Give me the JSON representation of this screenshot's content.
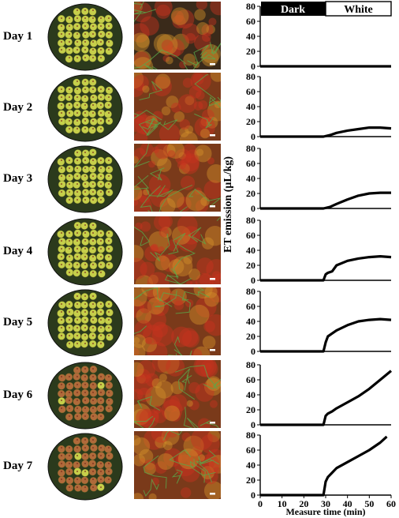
{
  "rows": [
    {
      "day": "Day 1",
      "state": "green"
    },
    {
      "day": "Day 2",
      "state": "green"
    },
    {
      "day": "Day 3",
      "state": "green"
    },
    {
      "day": "Day 4",
      "state": "green"
    },
    {
      "day": "Day 5",
      "state": "green"
    },
    {
      "day": "Day 6",
      "state": "brown"
    },
    {
      "day": "Day 7",
      "state": "brown"
    }
  ],
  "colors": {
    "fruit_green": "#c6cf4a",
    "fruit_brown": "#b06a3a",
    "micro_red": "#c8321e",
    "micro_green": "#5aa84a"
  },
  "legend": {
    "dark": "Dark",
    "white": "White"
  },
  "chart_data": {
    "type": "line",
    "xlabel": "Measure time (min)",
    "ylabel": "ET emission (μL/kg)",
    "xlim": [
      0,
      60
    ],
    "ylim": [
      0,
      80
    ],
    "xticks": [
      0,
      10,
      20,
      30,
      40,
      50,
      60
    ],
    "yticks": [
      0,
      20,
      40,
      60,
      80
    ],
    "series": [
      {
        "panel": 1,
        "x": [
          0,
          29,
          60
        ],
        "y": [
          0,
          0,
          0
        ]
      },
      {
        "panel": 2,
        "x": [
          0,
          29,
          32,
          35,
          40,
          45,
          50,
          55,
          60
        ],
        "y": [
          0,
          0,
          2,
          5,
          8,
          10,
          12,
          12,
          11
        ]
      },
      {
        "panel": 3,
        "x": [
          0,
          29,
          32,
          35,
          40,
          45,
          50,
          55,
          60
        ],
        "y": [
          0,
          0,
          2,
          6,
          12,
          17,
          20,
          21,
          21
        ]
      },
      {
        "panel": 4,
        "x": [
          0,
          29,
          30,
          31,
          33,
          35,
          40,
          45,
          50,
          55,
          60
        ],
        "y": [
          0,
          0,
          8,
          10,
          12,
          20,
          26,
          29,
          31,
          32,
          31
        ]
      },
      {
        "panel": 5,
        "x": [
          0,
          29,
          30,
          31,
          33,
          35,
          40,
          45,
          50,
          55,
          60
        ],
        "y": [
          0,
          0,
          12,
          20,
          24,
          28,
          35,
          40,
          42,
          43,
          42
        ]
      },
      {
        "panel": 6,
        "x": [
          0,
          29,
          30,
          31,
          33,
          35,
          40,
          45,
          50,
          55,
          60
        ],
        "y": [
          0,
          0,
          12,
          15,
          18,
          22,
          30,
          38,
          48,
          60,
          72
        ]
      },
      {
        "panel": 7,
        "x": [
          0,
          29,
          30,
          31,
          33,
          35,
          40,
          45,
          50,
          55,
          58
        ],
        "y": [
          0,
          0,
          18,
          24,
          30,
          36,
          44,
          52,
          60,
          70,
          78
        ]
      }
    ]
  }
}
